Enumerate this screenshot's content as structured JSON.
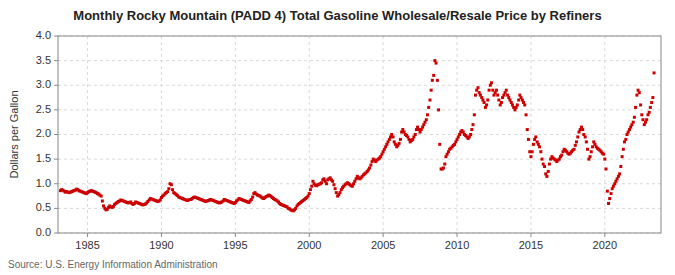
{
  "chart_data": {
    "type": "scatter",
    "title": "Monthly Rocky Mountain (PADD 4) Total Gasoline Wholesale/Resale Price by Refiners",
    "ylabel": "Dollars per Gallon",
    "annotations": [
      "Source: U.S. Energy Information Administration"
    ],
    "color": "#cc0000",
    "marker": "square",
    "grid": true,
    "xlim": [
      1983.0,
      2023.8
    ],
    "ylim": [
      0.0,
      4.0
    ],
    "xticks": [
      1985,
      1990,
      1995,
      2000,
      2005,
      2010,
      2015,
      2020
    ],
    "yticks": [
      {
        "value": 0.0,
        "label": "0.0"
      },
      0.5,
      {
        "value": 1.0,
        "label": "1.0"
      },
      1.5,
      {
        "value": 2.0,
        "label": "2.0"
      },
      2.5,
      {
        "value": 3.0,
        "label": "3.0"
      },
      3.5,
      {
        "value": 4.0,
        "label": "4.0"
      }
    ],
    "x": [
      1983.17,
      1983.25,
      1983.33,
      1983.42,
      1983.5,
      1983.58,
      1983.67,
      1983.75,
      1983.83,
      1983.92,
      1984.0,
      1984.08,
      1984.17,
      1984.25,
      1984.33,
      1984.42,
      1984.5,
      1984.58,
      1984.67,
      1984.75,
      1984.83,
      1984.92,
      1985.0,
      1985.08,
      1985.17,
      1985.25,
      1985.33,
      1985.42,
      1985.5,
      1985.58,
      1985.67,
      1985.75,
      1985.83,
      1985.92,
      1986.0,
      1986.08,
      1986.17,
      1986.25,
      1986.33,
      1986.42,
      1986.5,
      1986.58,
      1986.67,
      1986.75,
      1986.83,
      1986.92,
      1987.0,
      1987.08,
      1987.17,
      1987.25,
      1987.33,
      1987.42,
      1987.5,
      1987.58,
      1987.67,
      1987.75,
      1987.83,
      1987.92,
      1988.0,
      1988.08,
      1988.17,
      1988.25,
      1988.33,
      1988.42,
      1988.5,
      1988.58,
      1988.67,
      1988.75,
      1988.83,
      1988.92,
      1989.0,
      1989.08,
      1989.17,
      1989.25,
      1989.33,
      1989.42,
      1989.5,
      1989.58,
      1989.67,
      1989.75,
      1989.83,
      1989.92,
      1990.0,
      1990.08,
      1990.17,
      1990.25,
      1990.33,
      1990.42,
      1990.5,
      1990.58,
      1990.67,
      1990.75,
      1990.83,
      1990.92,
      1991.0,
      1991.08,
      1991.17,
      1991.25,
      1991.33,
      1991.42,
      1991.5,
      1991.58,
      1991.67,
      1991.75,
      1991.83,
      1991.92,
      1992.0,
      1992.08,
      1992.17,
      1992.25,
      1992.33,
      1992.42,
      1992.5,
      1992.58,
      1992.67,
      1992.75,
      1992.83,
      1992.92,
      1993.0,
      1993.08,
      1993.17,
      1993.25,
      1993.33,
      1993.42,
      1993.5,
      1993.58,
      1993.67,
      1993.75,
      1993.83,
      1993.92,
      1994.0,
      1994.08,
      1994.17,
      1994.25,
      1994.33,
      1994.42,
      1994.5,
      1994.58,
      1994.67,
      1994.75,
      1994.83,
      1994.92,
      1995.0,
      1995.08,
      1995.17,
      1995.25,
      1995.33,
      1995.42,
      1995.5,
      1995.58,
      1995.67,
      1995.75,
      1995.83,
      1995.92,
      1996.0,
      1996.08,
      1996.17,
      1996.25,
      1996.33,
      1996.42,
      1996.5,
      1996.58,
      1996.67,
      1996.75,
      1996.83,
      1996.92,
      1997.0,
      1997.08,
      1997.17,
      1997.25,
      1997.33,
      1997.42,
      1997.5,
      1997.58,
      1997.67,
      1997.75,
      1997.83,
      1997.92,
      1998.0,
      1998.08,
      1998.17,
      1998.25,
      1998.33,
      1998.42,
      1998.5,
      1998.58,
      1998.67,
      1998.75,
      1998.83,
      1998.92,
      1999.0,
      1999.08,
      1999.17,
      1999.25,
      1999.33,
      1999.42,
      1999.5,
      1999.58,
      1999.67,
      1999.75,
      1999.83,
      1999.92,
      2000.0,
      2000.08,
      2000.17,
      2000.25,
      2000.33,
      2000.42,
      2000.5,
      2000.58,
      2000.67,
      2000.75,
      2000.83,
      2000.92,
      2001.0,
      2001.08,
      2001.17,
      2001.25,
      2001.33,
      2001.42,
      2001.5,
      2001.58,
      2001.67,
      2001.75,
      2001.83,
      2001.92,
      2002.0,
      2002.08,
      2002.17,
      2002.25,
      2002.33,
      2002.42,
      2002.5,
      2002.58,
      2002.67,
      2002.75,
      2002.83,
      2002.92,
      2003.0,
      2003.08,
      2003.17,
      2003.25,
      2003.33,
      2003.42,
      2003.5,
      2003.58,
      2003.67,
      2003.75,
      2003.83,
      2003.92,
      2004.0,
      2004.08,
      2004.17,
      2004.25,
      2004.33,
      2004.42,
      2004.5,
      2004.58,
      2004.67,
      2004.75,
      2004.83,
      2004.92,
      2005.0,
      2005.08,
      2005.17,
      2005.25,
      2005.33,
      2005.42,
      2005.5,
      2005.58,
      2005.67,
      2005.75,
      2005.83,
      2005.92,
      2006.0,
      2006.08,
      2006.17,
      2006.25,
      2006.33,
      2006.42,
      2006.5,
      2006.58,
      2006.67,
      2006.75,
      2006.83,
      2006.92,
      2007.0,
      2007.08,
      2007.17,
      2007.25,
      2007.33,
      2007.42,
      2007.5,
      2007.58,
      2007.67,
      2007.75,
      2007.83,
      2007.92,
      2008.0,
      2008.08,
      2008.17,
      2008.25,
      2008.33,
      2008.42,
      2008.5,
      2008.58,
      2008.67,
      2008.75,
      2008.83,
      2008.92,
      2009.0,
      2009.08,
      2009.17,
      2009.25,
      2009.33,
      2009.42,
      2009.5,
      2009.58,
      2009.67,
      2009.75,
      2009.83,
      2009.92,
      2010.0,
      2010.08,
      2010.17,
      2010.25,
      2010.33,
      2010.42,
      2010.5,
      2010.58,
      2010.67,
      2010.75,
      2010.83,
      2010.92,
      2011.0,
      2011.08,
      2011.17,
      2011.25,
      2011.33,
      2011.42,
      2011.5,
      2011.58,
      2011.67,
      2011.75,
      2011.83,
      2011.92,
      2012.0,
      2012.08,
      2012.17,
      2012.25,
      2012.33,
      2012.42,
      2012.5,
      2012.58,
      2012.67,
      2012.75,
      2012.83,
      2012.92,
      2013.0,
      2013.08,
      2013.17,
      2013.25,
      2013.33,
      2013.42,
      2013.5,
      2013.58,
      2013.67,
      2013.75,
      2013.83,
      2013.92,
      2014.0,
      2014.08,
      2014.17,
      2014.25,
      2014.33,
      2014.42,
      2014.5,
      2014.58,
      2014.67,
      2014.75,
      2014.83,
      2014.92,
      2015.0,
      2015.08,
      2015.17,
      2015.25,
      2015.33,
      2015.42,
      2015.5,
      2015.58,
      2015.67,
      2015.75,
      2015.83,
      2015.92,
      2016.0,
      2016.08,
      2016.17,
      2016.25,
      2016.33,
      2016.42,
      2016.5,
      2016.58,
      2016.67,
      2016.75,
      2016.83,
      2016.92,
      2017.0,
      2017.08,
      2017.17,
      2017.25,
      2017.33,
      2017.42,
      2017.5,
      2017.58,
      2017.67,
      2017.75,
      2017.83,
      2017.92,
      2018.0,
      2018.08,
      2018.17,
      2018.25,
      2018.33,
      2018.42,
      2018.5,
      2018.58,
      2018.67,
      2018.75,
      2018.83,
      2018.92,
      2019.0,
      2019.08,
      2019.17,
      2019.25,
      2019.33,
      2019.42,
      2019.5,
      2019.58,
      2019.67,
      2019.75,
      2019.83,
      2019.92,
      2020.0,
      2020.08,
      2020.17,
      2020.25,
      2020.33,
      2020.42,
      2020.5,
      2020.58,
      2020.67,
      2020.75,
      2020.83,
      2020.92,
      2021.0,
      2021.08,
      2021.17,
      2021.25,
      2021.33,
      2021.42,
      2021.5,
      2021.58,
      2021.67,
      2021.75,
      2021.83,
      2021.92,
      2022.0,
      2022.08,
      2022.17,
      2022.25,
      2022.33,
      2022.42,
      2022.5,
      2022.58,
      2022.67,
      2022.75,
      2022.83,
      2022.92,
      2023.0,
      2023.08,
      2023.17,
      2023.25,
      2023.33
    ],
    "values": [
      0.86,
      0.88,
      0.87,
      0.85,
      0.83,
      0.84,
      0.83,
      0.82,
      0.83,
      0.84,
      0.85,
      0.86,
      0.87,
      0.89,
      0.88,
      0.86,
      0.85,
      0.84,
      0.83,
      0.82,
      0.81,
      0.8,
      0.82,
      0.84,
      0.85,
      0.86,
      0.85,
      0.84,
      0.83,
      0.82,
      0.8,
      0.79,
      0.77,
      0.75,
      0.65,
      0.55,
      0.5,
      0.47,
      0.48,
      0.52,
      0.55,
      0.53,
      0.52,
      0.54,
      0.58,
      0.6,
      0.62,
      0.64,
      0.65,
      0.67,
      0.66,
      0.65,
      0.64,
      0.63,
      0.62,
      0.61,
      0.62,
      0.63,
      0.6,
      0.58,
      0.6,
      0.63,
      0.62,
      0.61,
      0.6,
      0.59,
      0.58,
      0.57,
      0.58,
      0.59,
      0.61,
      0.64,
      0.67,
      0.7,
      0.69,
      0.68,
      0.67,
      0.66,
      0.65,
      0.64,
      0.65,
      0.67,
      0.72,
      0.75,
      0.77,
      0.8,
      0.82,
      0.84,
      0.9,
      1.0,
      0.98,
      0.88,
      0.82,
      0.8,
      0.78,
      0.76,
      0.73,
      0.72,
      0.71,
      0.7,
      0.69,
      0.68,
      0.67,
      0.66,
      0.67,
      0.68,
      0.68,
      0.7,
      0.72,
      0.73,
      0.72,
      0.71,
      0.7,
      0.69,
      0.68,
      0.67,
      0.66,
      0.65,
      0.64,
      0.65,
      0.66,
      0.67,
      0.68,
      0.67,
      0.66,
      0.65,
      0.64,
      0.63,
      0.62,
      0.61,
      0.62,
      0.63,
      0.65,
      0.68,
      0.67,
      0.66,
      0.65,
      0.64,
      0.63,
      0.62,
      0.61,
      0.6,
      0.62,
      0.65,
      0.67,
      0.7,
      0.69,
      0.68,
      0.67,
      0.66,
      0.65,
      0.64,
      0.63,
      0.62,
      0.65,
      0.68,
      0.73,
      0.8,
      0.82,
      0.79,
      0.77,
      0.76,
      0.75,
      0.73,
      0.71,
      0.7,
      0.72,
      0.74,
      0.75,
      0.77,
      0.76,
      0.74,
      0.72,
      0.7,
      0.68,
      0.67,
      0.65,
      0.63,
      0.6,
      0.58,
      0.57,
      0.56,
      0.55,
      0.54,
      0.53,
      0.5,
      0.49,
      0.47,
      0.46,
      0.45,
      0.47,
      0.5,
      0.55,
      0.58,
      0.6,
      0.62,
      0.64,
      0.66,
      0.68,
      0.7,
      0.72,
      0.75,
      0.8,
      0.88,
      0.95,
      1.05,
      1.0,
      0.97,
      0.96,
      0.98,
      0.99,
      1.0,
      1.02,
      1.08,
      1.1,
      1.05,
      1.0,
      1.08,
      1.1,
      1.12,
      1.08,
      1.05,
      0.98,
      0.9,
      0.82,
      0.75,
      0.78,
      0.82,
      0.88,
      0.92,
      0.95,
      0.98,
      1.0,
      1.02,
      1.0,
      0.98,
      0.96,
      0.95,
      1.0,
      1.05,
      1.1,
      1.15,
      1.12,
      1.1,
      1.12,
      1.15,
      1.18,
      1.2,
      1.22,
      1.25,
      1.28,
      1.32,
      1.38,
      1.45,
      1.5,
      1.48,
      1.45,
      1.48,
      1.5,
      1.52,
      1.55,
      1.6,
      1.65,
      1.7,
      1.75,
      1.8,
      1.85,
      1.9,
      1.95,
      2.0,
      1.95,
      1.85,
      1.8,
      1.75,
      1.78,
      1.82,
      1.9,
      2.05,
      2.1,
      2.05,
      2.0,
      1.98,
      1.95,
      1.9,
      1.85,
      1.88,
      1.9,
      1.95,
      2.0,
      2.1,
      2.15,
      2.1,
      2.05,
      2.1,
      2.15,
      2.2,
      2.25,
      2.3,
      2.4,
      2.55,
      2.7,
      2.9,
      3.1,
      3.2,
      3.5,
      3.45,
      3.1,
      2.5,
      1.8,
      1.3,
      1.3,
      1.32,
      1.4,
      1.55,
      1.6,
      1.65,
      1.7,
      1.72,
      1.75,
      1.78,
      1.8,
      1.85,
      1.9,
      1.95,
      2.0,
      2.05,
      2.08,
      2.05,
      2.0,
      1.98,
      1.95,
      1.92,
      1.95,
      2.0,
      2.1,
      2.2,
      2.4,
      2.8,
      2.9,
      2.95,
      2.85,
      2.8,
      2.75,
      2.7,
      2.65,
      2.55,
      2.6,
      2.7,
      2.9,
      3.0,
      3.05,
      2.9,
      2.8,
      2.85,
      2.9,
      2.8,
      2.7,
      2.6,
      2.65,
      2.75,
      2.8,
      2.85,
      2.9,
      2.8,
      2.75,
      2.7,
      2.65,
      2.6,
      2.55,
      2.5,
      2.55,
      2.6,
      2.7,
      2.8,
      2.75,
      2.7,
      2.65,
      2.6,
      2.4,
      2.1,
      1.9,
      1.65,
      1.55,
      1.65,
      1.8,
      1.9,
      1.95,
      1.85,
      1.8,
      1.75,
      1.65,
      1.5,
      1.4,
      1.35,
      1.2,
      1.15,
      1.25,
      1.4,
      1.5,
      1.55,
      1.52,
      1.5,
      1.48,
      1.45,
      1.48,
      1.5,
      1.55,
      1.58,
      1.65,
      1.7,
      1.68,
      1.65,
      1.62,
      1.6,
      1.62,
      1.65,
      1.68,
      1.7,
      1.78,
      1.85,
      1.95,
      2.05,
      2.1,
      2.15,
      2.1,
      2.0,
      1.95,
      1.85,
      1.7,
      1.5,
      1.55,
      1.65,
      1.75,
      1.85,
      1.8,
      1.75,
      1.72,
      1.7,
      1.68,
      1.65,
      1.62,
      1.6,
      1.5,
      1.3,
      0.85,
      0.6,
      0.7,
      0.8,
      0.9,
      0.95,
      1.0,
      1.05,
      1.1,
      1.15,
      1.2,
      1.35,
      1.55,
      1.7,
      1.85,
      1.9,
      2.0,
      2.05,
      2.1,
      2.15,
      2.2,
      2.25,
      2.35,
      2.55,
      2.8,
      2.9,
      2.85,
      2.6,
      2.4,
      2.3,
      2.2,
      2.25,
      2.3,
      2.4,
      2.45,
      2.55,
      2.65,
      2.75,
      3.25
    ]
  }
}
